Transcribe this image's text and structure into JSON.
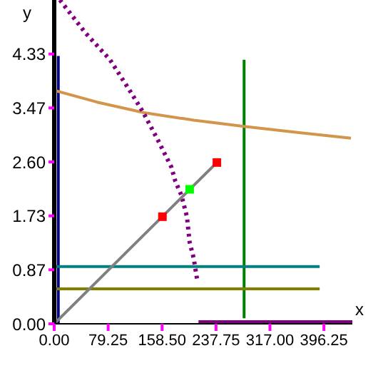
{
  "chart_data": {
    "type": "line",
    "xlabel": "x",
    "ylabel": "y",
    "xlim": [
      0,
      438
    ],
    "ylim": [
      0,
      5.2
    ],
    "xticks": [
      {
        "value": 0,
        "label": "0.00"
      },
      {
        "value": 79.25,
        "label": "79.25"
      },
      {
        "value": 158.5,
        "label": "158.50"
      },
      {
        "value": 237.75,
        "label": "237.75"
      },
      {
        "value": 317,
        "label": "317.00"
      },
      {
        "value": 396.25,
        "label": "396.25"
      }
    ],
    "yticks": [
      {
        "value": 0,
        "label": "0.00"
      },
      {
        "value": 0.867,
        "label": "0.87"
      },
      {
        "value": 1.733,
        "label": "1.73"
      },
      {
        "value": 2.6,
        "label": "2.60"
      },
      {
        "value": 3.467,
        "label": "3.47"
      },
      {
        "value": 4.333,
        "label": "4.33"
      }
    ],
    "grid": false,
    "legend": false,
    "series": [
      {
        "color": "#000080",
        "x": [
          6,
          6
        ],
        "values": [
          0,
          4.3
        ]
      },
      {
        "color": "#008000",
        "x": [
          279,
          279
        ],
        "values": [
          0.09,
          4.24
        ]
      },
      {
        "color": "#008080",
        "x": [
          0,
          390
        ],
        "values": [
          0.92,
          0.92
        ]
      },
      {
        "color": "#808000",
        "x": [
          0,
          390
        ],
        "values": [
          0.56,
          0.56
        ]
      },
      {
        "color": "#d2954b",
        "x": [
          0,
          63,
          132,
          205,
          279,
          360,
          436
        ],
        "values": [
          3.75,
          3.56,
          3.39,
          3.27,
          3.17,
          3.07,
          2.98
        ]
      },
      {
        "color": "#800080",
        "line_style": "dotted",
        "x": [
          8.4,
          46,
          82,
          109,
          130,
          151,
          172,
          178,
          187,
          195,
          199,
          205,
          210
        ],
        "values": [
          5.2,
          4.67,
          4.24,
          3.78,
          3.41,
          2.98,
          2.52,
          2.29,
          2.06,
          1.72,
          1.31,
          1.05,
          0.71
        ]
      },
      {
        "color": "#800080",
        "x": [
          212,
          438
        ],
        "values": [
          0,
          0
        ]
      },
      {
        "color": "#808080",
        "x": [
          0,
          239
        ],
        "values": [
          0,
          2.59
        ]
      },
      {
        "type": "scatter",
        "marker": "square",
        "color": "#ff0000",
        "x": [
          159,
          239
        ],
        "values": [
          1.72,
          2.59
        ]
      },
      {
        "type": "scatter",
        "marker": "square",
        "color": "#00ff00",
        "x": [
          199
        ],
        "values": [
          2.16
        ]
      }
    ]
  }
}
